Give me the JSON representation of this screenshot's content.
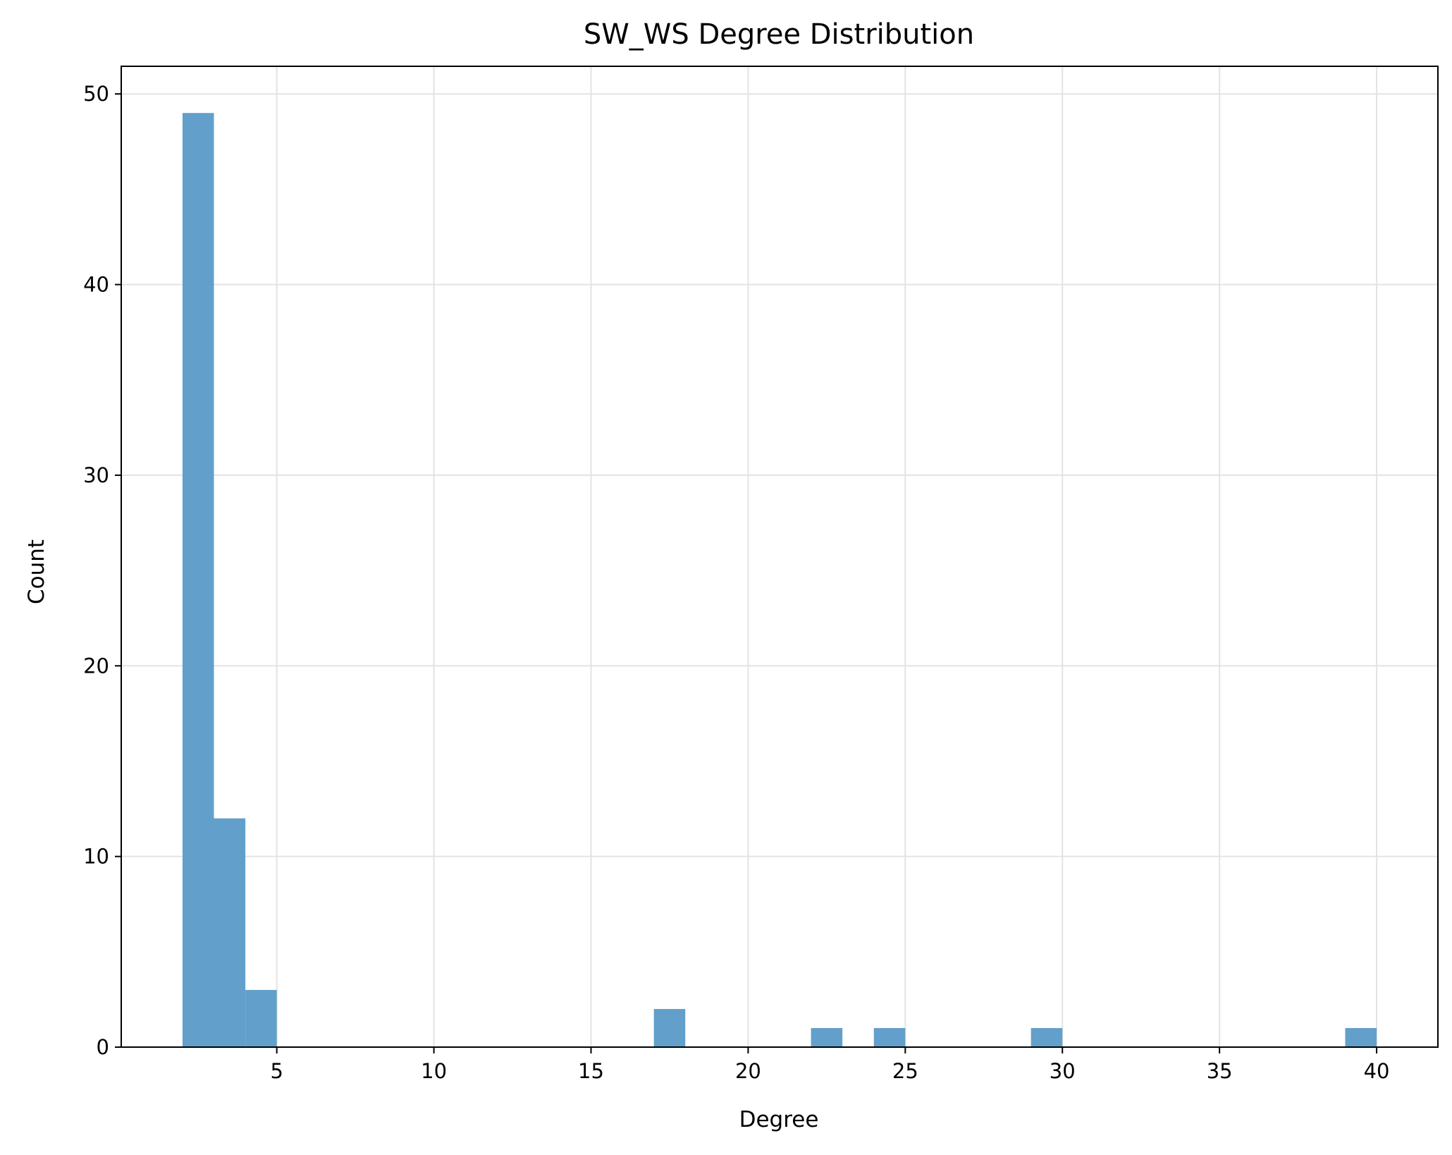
{
  "chart_data": {
    "type": "bar",
    "title": "SW_WS Degree Distribution",
    "xlabel": "Degree",
    "ylabel": "Count",
    "xlim": [
      0.05,
      41.95
    ],
    "ylim": [
      0,
      51.45
    ],
    "xticks": [
      5,
      10,
      15,
      20,
      25,
      30,
      35,
      40
    ],
    "yticks": [
      0,
      10,
      20,
      30,
      40,
      50
    ],
    "grid": true,
    "bar_color": "#62a0cb",
    "bins": [
      {
        "x0": 2.0,
        "x1": 3.0,
        "count": 49
      },
      {
        "x0": 3.0,
        "x1": 4.0,
        "count": 12
      },
      {
        "x0": 4.0,
        "x1": 5.0,
        "count": 3
      },
      {
        "x0": 17.0,
        "x1": 18.0,
        "count": 2
      },
      {
        "x0": 22.0,
        "x1": 23.0,
        "count": 1
      },
      {
        "x0": 24.0,
        "x1": 25.0,
        "count": 1
      },
      {
        "x0": 29.0,
        "x1": 30.0,
        "count": 1
      },
      {
        "x0": 39.0,
        "x1": 40.0,
        "count": 1
      }
    ]
  }
}
